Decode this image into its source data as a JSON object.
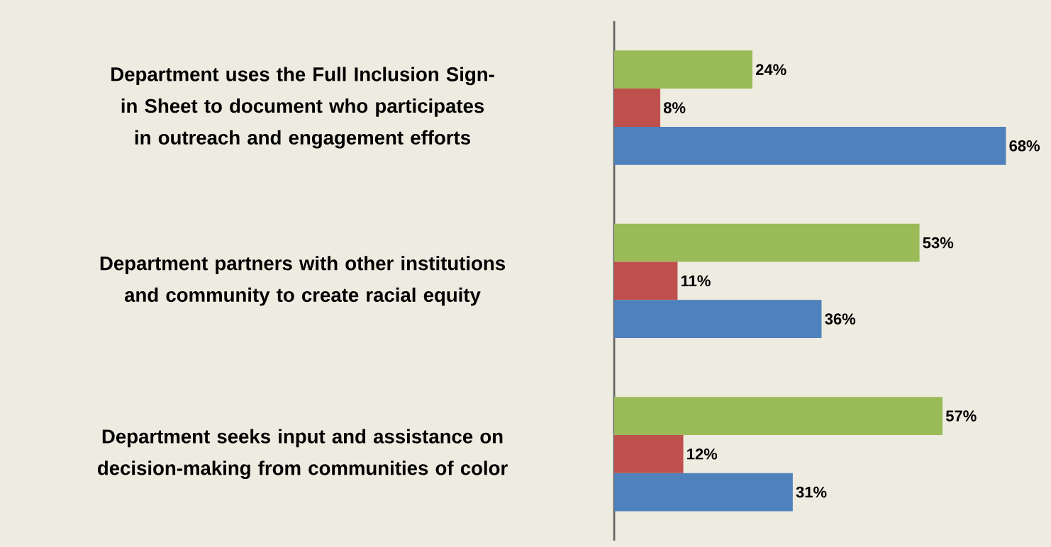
{
  "chart_data": {
    "type": "bar",
    "orientation": "horizontal",
    "categories": [
      "Department uses the Full Inclusion Sign-in Sheet to document who participates in outreach and engagement efforts",
      "Department partners with other institutions and community to create racial equity",
      "Department seeks input and assistance on decision-making from communities of color"
    ],
    "series": [
      {
        "color": "#9bbb59",
        "values": [
          24,
          53,
          57
        ],
        "value_labels": [
          "24%",
          "53%",
          "57%"
        ]
      },
      {
        "color": "#c0504d",
        "values": [
          8,
          11,
          12
        ],
        "value_labels": [
          "8%",
          "11%",
          "12%"
        ]
      },
      {
        "color": "#4f81bd",
        "values": [
          68,
          36,
          31
        ],
        "value_labels": [
          "68%",
          "36%",
          "31%"
        ]
      }
    ],
    "tick_labels": "y"
  }
}
